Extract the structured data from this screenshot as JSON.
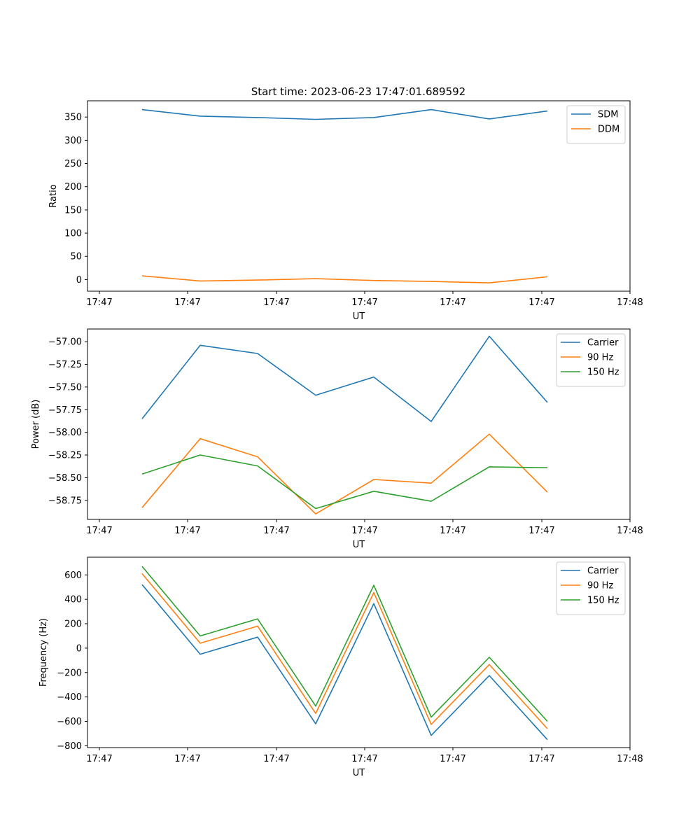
{
  "figure": {
    "title": "Start time: 2023-06-23 17:47:01.689592"
  },
  "chart_data": [
    {
      "type": "line",
      "title": "Start time: 2023-06-23 17:47:01.689592",
      "xlabel": "UT",
      "ylabel": "Ratio",
      "x": [
        "17:47:02.2",
        "17:47:02.7",
        "17:47:03.2",
        "17:47:03.7",
        "17:47:04.2",
        "17:47:04.7",
        "17:47:05.2",
        "17:47:05.7"
      ],
      "x_ticks": [
        "17:47",
        "17:47",
        "17:47",
        "17:47",
        "17:47",
        "17:47",
        "17:48"
      ],
      "ylim": [
        -25,
        385
      ],
      "y_ticks": [
        0,
        50,
        100,
        150,
        200,
        250,
        300,
        350
      ],
      "y_tick_labels": [
        "0",
        "50",
        "100",
        "150",
        "200",
        "250",
        "300",
        "350"
      ],
      "series": [
        {
          "name": "SDM",
          "color": "#1f77b4",
          "values": [
            366,
            352,
            349,
            345,
            349,
            366,
            346,
            363
          ]
        },
        {
          "name": "DDM",
          "color": "#ff7f0e",
          "values": [
            8,
            -3,
            -1,
            2,
            -2,
            -4,
            -7,
            6
          ]
        }
      ],
      "legend": "top-right",
      "grid": false
    },
    {
      "type": "line",
      "xlabel": "UT",
      "ylabel": "Power (dB)",
      "x": [
        "17:47:02.2",
        "17:47:02.7",
        "17:47:03.2",
        "17:47:03.7",
        "17:47:04.2",
        "17:47:04.7",
        "17:47:05.2",
        "17:47:05.7"
      ],
      "x_ticks": [
        "17:47",
        "17:47",
        "17:47",
        "17:47",
        "17:47",
        "17:47",
        "17:48"
      ],
      "ylim": [
        -58.96,
        -56.86
      ],
      "y_ticks": [
        -57.0,
        -57.25,
        -57.5,
        -57.75,
        -58.0,
        -58.25,
        -58.5,
        -58.75
      ],
      "y_tick_labels": [
        "−57.00",
        "−57.25",
        "−57.50",
        "−57.75",
        "−58.00",
        "−58.25",
        "−58.50",
        "−58.75"
      ],
      "series": [
        {
          "name": "Carrier",
          "color": "#1f77b4",
          "values": [
            -57.85,
            -57.04,
            -57.13,
            -57.59,
            -57.39,
            -57.88,
            -56.94,
            -57.67
          ]
        },
        {
          "name": "90 Hz",
          "color": "#ff7f0e",
          "values": [
            -58.83,
            -58.07,
            -58.27,
            -58.9,
            -58.52,
            -58.56,
            -58.02,
            -58.66
          ]
        },
        {
          "name": "150 Hz",
          "color": "#2ca02c",
          "values": [
            -58.46,
            -58.25,
            -58.37,
            -58.84,
            -58.65,
            -58.76,
            -58.38,
            -58.39
          ]
        }
      ],
      "legend": "top-right",
      "grid": false
    },
    {
      "type": "line",
      "xlabel": "UT",
      "ylabel": "Frequency (Hz)",
      "x": [
        "17:47:02.2",
        "17:47:02.7",
        "17:47:03.2",
        "17:47:03.7",
        "17:47:04.2",
        "17:47:04.7",
        "17:47:05.2",
        "17:47:05.7"
      ],
      "x_ticks": [
        "17:47",
        "17:47",
        "17:47",
        "17:47",
        "17:47",
        "17:47",
        "17:48"
      ],
      "ylim": [
        -815,
        745
      ],
      "y_ticks": [
        -800,
        -600,
        -400,
        -200,
        0,
        200,
        400,
        600
      ],
      "y_tick_labels": [
        "−800",
        "−600",
        "−400",
        "−200",
        "0",
        "200",
        "400",
        "600"
      ],
      "series": [
        {
          "name": "Carrier",
          "color": "#1f77b4",
          "values": [
            520,
            -50,
            90,
            -620,
            365,
            -715,
            -225,
            -750
          ]
        },
        {
          "name": "90 Hz",
          "color": "#ff7f0e",
          "values": [
            610,
            40,
            180,
            -535,
            455,
            -625,
            -135,
            -660
          ]
        },
        {
          "name": "150 Hz",
          "color": "#2ca02c",
          "values": [
            670,
            100,
            240,
            -475,
            515,
            -565,
            -75,
            -600
          ]
        }
      ],
      "legend": "top-right",
      "grid": false
    }
  ]
}
